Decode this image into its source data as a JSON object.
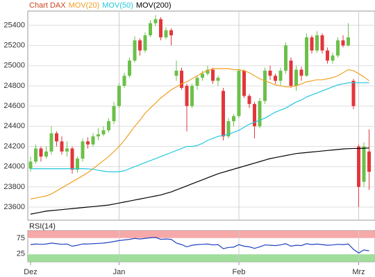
{
  "chart_data": [
    {
      "type": "candlestick",
      "title": "Chart DAX",
      "categories": [
        "Dez",
        null,
        null,
        null,
        null,
        null,
        null,
        null,
        null,
        null,
        null,
        null,
        null,
        null,
        null,
        null,
        null,
        "Jan",
        null,
        null,
        null,
        null,
        null,
        null,
        null,
        null,
        null,
        null,
        null,
        null,
        null,
        null,
        null,
        null,
        null,
        null,
        null,
        null,
        null,
        null,
        "Feb",
        null,
        null,
        null,
        null,
        null,
        null,
        null,
        null,
        null,
        null,
        null,
        null,
        null,
        null,
        null,
        null,
        null,
        null,
        null,
        null,
        null,
        null,
        "Mrz",
        null,
        null
      ],
      "open": [
        23980,
        24050,
        24180,
        24100,
        24150,
        24330,
        24250,
        24150,
        24180,
        23970,
        24080,
        24250,
        24220,
        24300,
        24320,
        24360,
        24450,
        24600,
        24800,
        24900,
        25050,
        25250,
        25150,
        25300,
        25420,
        25460,
        25280,
        25350,
        24900,
        24950,
        24800,
        24600,
        24800,
        24880,
        24920,
        24960,
        24850,
        24750,
        24300,
        24450,
        24500,
        24950,
        24700,
        24620,
        24400,
        24650,
        24950,
        24900,
        24850,
        24950,
        25050,
        24800,
        24960,
        24900,
        25280,
        25150,
        25300,
        25150,
        25050,
        25100,
        25250,
        25200,
        24850,
        24200,
        23850,
        24150
      ],
      "high": [
        24100,
        24220,
        24200,
        24200,
        24400,
        24350,
        24300,
        24250,
        24200,
        24100,
        24280,
        24290,
        24330,
        24380,
        24400,
        24480,
        24640,
        24830,
        24930,
        25080,
        25290,
        25270,
        25330,
        25450,
        25500,
        25480,
        25380,
        25370,
        25050,
        24980,
        24820,
        24820,
        24900,
        24950,
        25000,
        24980,
        24900,
        24780,
        24480,
        24520,
        24970,
        24960,
        24720,
        24640,
        24680,
        24980,
        25000,
        24920,
        24980,
        25230,
        25080,
        25000,
        24990,
        25320,
        25300,
        25340,
        25320,
        25180,
        25130,
        25280,
        25300,
        25420,
        24870,
        24220,
        24240,
        24370
      ],
      "low": [
        23950,
        24030,
        24050,
        24080,
        24120,
        24200,
        24120,
        24100,
        23930,
        23940,
        24050,
        24180,
        24200,
        24260,
        24300,
        24340,
        24420,
        24580,
        24780,
        24880,
        25030,
        25100,
        25130,
        25280,
        25390,
        25250,
        25260,
        25200,
        24850,
        24760,
        24350,
        24580,
        24760,
        24850,
        24900,
        24820,
        24800,
        24260,
        24280,
        24400,
        24480,
        24680,
        24580,
        24280,
        24380,
        24620,
        24860,
        24820,
        24800,
        24920,
        24780,
        24750,
        24850,
        24890,
        25120,
        25130,
        25120,
        25020,
        25020,
        25080,
        25180,
        25190,
        24570,
        23600,
        23800,
        23770
      ],
      "close": [
        24050,
        24180,
        24100,
        24150,
        24330,
        24250,
        24150,
        24180,
        23970,
        24080,
        24250,
        24220,
        24300,
        24320,
        24360,
        24450,
        24600,
        24800,
        24900,
        25050,
        25250,
        25150,
        25300,
        25420,
        25460,
        25280,
        25350,
        25300,
        24950,
        24780,
        24600,
        24800,
        24880,
        24920,
        24960,
        24850,
        24880,
        24300,
        24450,
        24500,
        24950,
        24700,
        24620,
        24400,
        24650,
        24950,
        24900,
        24850,
        24950,
        25200,
        24800,
        24960,
        24900,
        25280,
        25150,
        25300,
        25150,
        25050,
        25100,
        25250,
        25200,
        25280,
        24600,
        23800,
        24200,
        23950
      ],
      "up_color": "#6cc04a",
      "down_color": "#e2363c",
      "series": [
        {
          "name": "MOV(20)",
          "color": "#f0a020",
          "values": [
            23680,
            23690,
            23700,
            23710,
            23730,
            23760,
            23790,
            23820,
            23850,
            23880,
            23910,
            23940,
            23980,
            24020,
            24060,
            24100,
            24150,
            24200,
            24260,
            24330,
            24400,
            24460,
            24530,
            24580,
            24630,
            24680,
            24720,
            24760,
            24790,
            24820,
            24840,
            24870,
            24900,
            24930,
            24950,
            24970,
            24970,
            24970,
            24970,
            24960,
            24960,
            24950,
            24930,
            24900,
            24870,
            24850,
            24830,
            24810,
            24800,
            24790,
            24790,
            24800,
            24820,
            24840,
            24850,
            24860,
            24860,
            24870,
            24880,
            24900,
            24930,
            24960,
            24950,
            24920,
            24890,
            24850
          ]
        },
        {
          "name": "MOV(50)",
          "color": "#22c8dc",
          "values": [
            23980,
            23980,
            23980,
            23980,
            23980,
            23980,
            23980,
            23980,
            23980,
            23980,
            23980,
            23978,
            23975,
            23965,
            23955,
            23950,
            23950,
            23950,
            23960,
            23980,
            24000,
            24020,
            24040,
            24060,
            24080,
            24100,
            24120,
            24140,
            24160,
            24180,
            24200,
            24200,
            24210,
            24230,
            24260,
            24280,
            24300,
            24310,
            24320,
            24340,
            24360,
            24390,
            24420,
            24440,
            24460,
            24480,
            24510,
            24540,
            24560,
            24580,
            24610,
            24640,
            24660,
            24690,
            24710,
            24730,
            24750,
            24770,
            24790,
            24810,
            24820,
            24830,
            24830,
            24830,
            24830,
            24830
          ]
        },
        {
          "name": "MOV(200)",
          "color": "#000000",
          "values": [
            23530,
            23540,
            23550,
            23560,
            23565,
            23570,
            23575,
            23580,
            23585,
            23590,
            23595,
            23600,
            23605,
            23610,
            23615,
            23620,
            23630,
            23640,
            23650,
            23660,
            23670,
            23680,
            23690,
            23700,
            23710,
            23720,
            23735,
            23750,
            23770,
            23790,
            23810,
            23830,
            23850,
            23870,
            23890,
            23910,
            23930,
            23945,
            23960,
            23975,
            23990,
            24005,
            24020,
            24035,
            24050,
            24065,
            24080,
            24090,
            24100,
            24110,
            24120,
            24130,
            24135,
            24140,
            24145,
            24150,
            24155,
            24160,
            24165,
            24170,
            24175,
            24178,
            24180,
            24180,
            24182,
            24185
          ]
        }
      ],
      "ylim": [
        23470,
        25540
      ],
      "yticks": [
        23600,
        23800,
        24000,
        24200,
        24400,
        24600,
        24800,
        25000,
        25200,
        25400
      ],
      "grid": true
    },
    {
      "type": "line",
      "series": [
        {
          "name": "RSI(14)",
          "color": "#2040c0",
          "values": [
            55,
            57,
            56,
            57,
            60,
            58,
            56,
            57,
            50,
            53,
            57,
            57,
            58,
            59,
            60,
            62,
            65,
            68,
            70,
            72,
            75,
            73,
            75,
            77,
            78,
            72,
            73,
            72,
            60,
            55,
            48,
            53,
            55,
            56,
            57,
            54,
            55,
            42,
            46,
            47,
            55,
            50,
            48,
            43,
            48,
            54,
            53,
            52,
            54,
            58,
            50,
            53,
            52,
            58,
            55,
            57,
            55,
            53,
            54,
            56,
            55,
            57,
            40,
            28,
            38,
            35
          ]
        }
      ],
      "zones": [
        {
          "from": 75,
          "to": 100,
          "color": "#f49a9a"
        },
        {
          "from": 0,
          "to": 25,
          "color": "#8ed88a"
        }
      ],
      "ylim": [
        0,
        100
      ],
      "yticks": [
        25,
        75
      ],
      "grid": true
    }
  ]
}
